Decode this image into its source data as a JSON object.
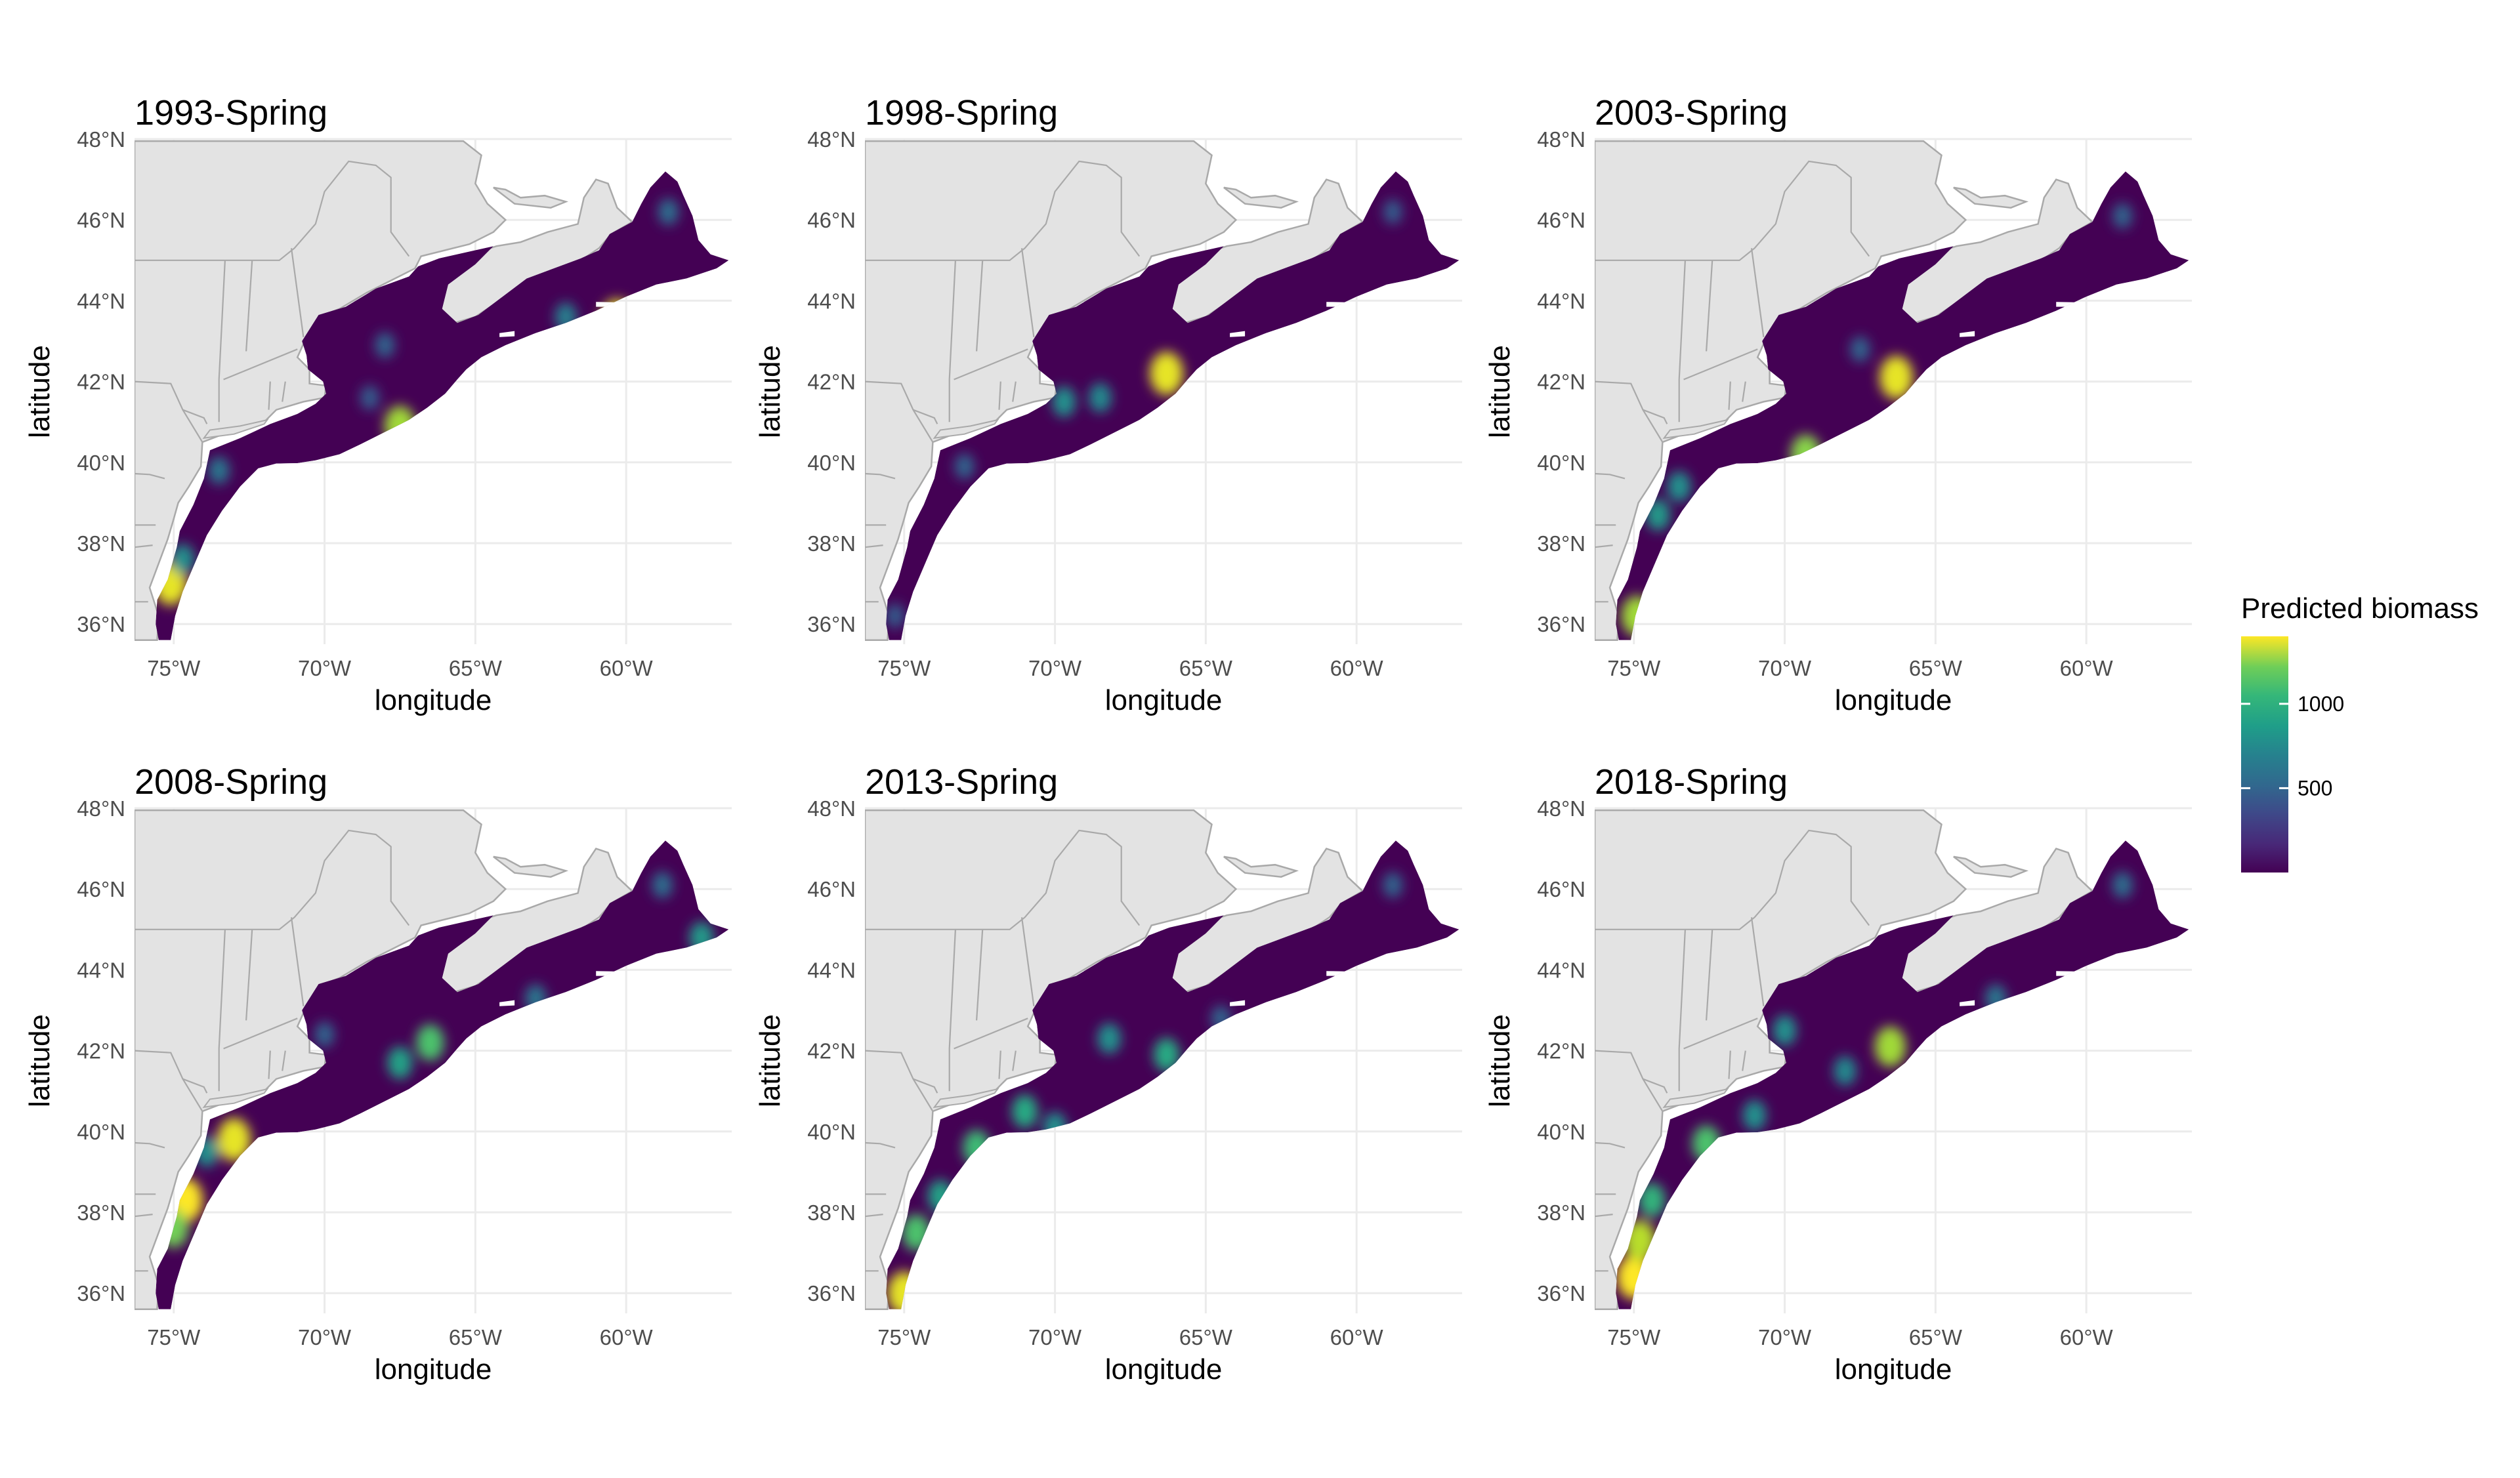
{
  "figure": {
    "x_axis_title": "longitude",
    "y_axis_title": "latitude",
    "x_ticks": [
      {
        "value": -75,
        "label": "75°W"
      },
      {
        "value": -70,
        "label": "70°W"
      },
      {
        "value": -65,
        "label": "65°W"
      },
      {
        "value": -60,
        "label": "60°W"
      }
    ],
    "y_ticks": [
      {
        "value": 36,
        "label": "36°N"
      },
      {
        "value": 38,
        "label": "38°N"
      },
      {
        "value": 40,
        "label": "40°N"
      },
      {
        "value": 42,
        "label": "42°N"
      },
      {
        "value": 44,
        "label": "44°N"
      },
      {
        "value": 46,
        "label": "46°N"
      },
      {
        "value": 48,
        "label": "48°N"
      }
    ],
    "xlim": [
      -76.3,
      -56.5
    ],
    "ylim": [
      35.5,
      48.0
    ]
  },
  "colors": {
    "land": "#e3e3e3",
    "border": "#a9a9a9",
    "grid": "#ebebeb",
    "background": "#ffffff",
    "viridis_low": "#440154",
    "viridis_mid": "#21908c",
    "viridis_high": "#fde725"
  },
  "legend": {
    "title": "Predicted biomass",
    "range": [
      0,
      1400
    ],
    "ticks": [
      {
        "value": 500,
        "label": "500"
      },
      {
        "value": 1000,
        "label": "1000"
      }
    ]
  },
  "panels": [
    {
      "title": "1993-Spring",
      "hotspots": [
        {
          "lon": -75.1,
          "lat": 37.0,
          "value": 1350
        },
        {
          "lon": -74.7,
          "lat": 37.6,
          "value": 700
        },
        {
          "lon": -73.5,
          "lat": 39.8,
          "value": 550
        },
        {
          "lon": -67.5,
          "lat": 40.9,
          "value": 1200
        },
        {
          "lon": -68.5,
          "lat": 41.6,
          "value": 400
        },
        {
          "lon": -60.3,
          "lat": 43.5,
          "value": 1350
        },
        {
          "lon": -62.0,
          "lat": 43.6,
          "value": 600
        },
        {
          "lon": -68.0,
          "lat": 42.9,
          "value": 450
        },
        {
          "lon": -58.6,
          "lat": 46.2,
          "value": 500
        }
      ]
    },
    {
      "title": "1998-Spring",
      "hotspots": [
        {
          "lon": -66.3,
          "lat": 42.2,
          "value": 1350
        },
        {
          "lon": -69.7,
          "lat": 41.5,
          "value": 700
        },
        {
          "lon": -68.5,
          "lat": 41.6,
          "value": 650
        },
        {
          "lon": -73.0,
          "lat": 39.9,
          "value": 450
        },
        {
          "lon": -58.8,
          "lat": 46.2,
          "value": 400
        },
        {
          "lon": -75.3,
          "lat": 36.2,
          "value": 400
        }
      ]
    },
    {
      "title": "2003-Spring",
      "hotspots": [
        {
          "lon": -66.3,
          "lat": 42.1,
          "value": 1350
        },
        {
          "lon": -69.3,
          "lat": 40.2,
          "value": 1150
        },
        {
          "lon": -73.5,
          "lat": 39.4,
          "value": 700
        },
        {
          "lon": -74.2,
          "lat": 38.7,
          "value": 750
        },
        {
          "lon": -74.9,
          "lat": 36.2,
          "value": 1200
        },
        {
          "lon": -67.5,
          "lat": 42.8,
          "value": 450
        },
        {
          "lon": -58.8,
          "lat": 46.1,
          "value": 450
        }
      ]
    },
    {
      "title": "2008-Spring",
      "hotspots": [
        {
          "lon": -74.6,
          "lat": 38.3,
          "value": 1400
        },
        {
          "lon": -75.0,
          "lat": 37.6,
          "value": 1100
        },
        {
          "lon": -73.0,
          "lat": 39.8,
          "value": 1350
        },
        {
          "lon": -73.9,
          "lat": 39.5,
          "value": 700
        },
        {
          "lon": -66.5,
          "lat": 42.2,
          "value": 1000
        },
        {
          "lon": -67.5,
          "lat": 41.7,
          "value": 800
        },
        {
          "lon": -70.0,
          "lat": 42.4,
          "value": 450
        },
        {
          "lon": -63.0,
          "lat": 43.3,
          "value": 550
        },
        {
          "lon": -57.5,
          "lat": 44.8,
          "value": 750
        },
        {
          "lon": -58.8,
          "lat": 46.1,
          "value": 500
        }
      ]
    },
    {
      "title": "2013-Spring",
      "hotspots": [
        {
          "lon": -75.0,
          "lat": 36.0,
          "value": 1350
        },
        {
          "lon": -74.6,
          "lat": 37.5,
          "value": 1000
        },
        {
          "lon": -73.8,
          "lat": 38.4,
          "value": 800
        },
        {
          "lon": -72.6,
          "lat": 39.6,
          "value": 950
        },
        {
          "lon": -71.0,
          "lat": 40.5,
          "value": 850
        },
        {
          "lon": -70.0,
          "lat": 40.1,
          "value": 700
        },
        {
          "lon": -66.3,
          "lat": 41.9,
          "value": 850
        },
        {
          "lon": -68.2,
          "lat": 42.3,
          "value": 700
        },
        {
          "lon": -64.5,
          "lat": 42.8,
          "value": 450
        },
        {
          "lon": -58.8,
          "lat": 46.1,
          "value": 450
        }
      ]
    },
    {
      "title": "2018-Spring",
      "hotspots": [
        {
          "lon": -75.0,
          "lat": 36.4,
          "value": 1400
        },
        {
          "lon": -74.8,
          "lat": 37.3,
          "value": 1250
        },
        {
          "lon": -74.4,
          "lat": 38.3,
          "value": 900
        },
        {
          "lon": -72.6,
          "lat": 39.7,
          "value": 1000
        },
        {
          "lon": -71.0,
          "lat": 40.4,
          "value": 700
        },
        {
          "lon": -66.5,
          "lat": 42.1,
          "value": 1200
        },
        {
          "lon": -68.0,
          "lat": 41.5,
          "value": 650
        },
        {
          "lon": -70.0,
          "lat": 42.5,
          "value": 700
        },
        {
          "lon": -63.0,
          "lat": 43.3,
          "value": 550
        },
        {
          "lon": -58.8,
          "lat": 46.1,
          "value": 500
        }
      ]
    }
  ]
}
